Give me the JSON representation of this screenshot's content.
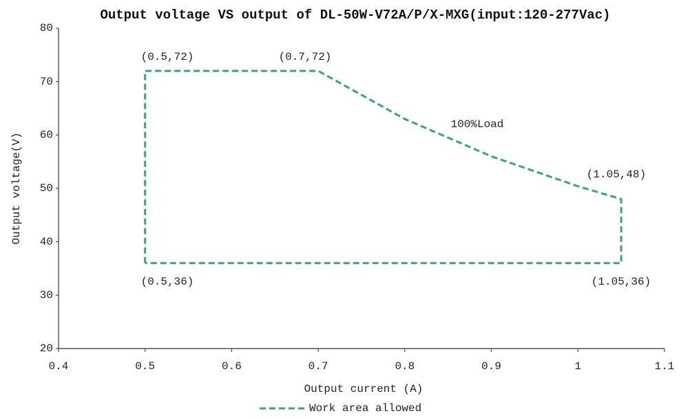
{
  "chart_data": {
    "type": "line",
    "title": "Output voltage VS output of DL-50W-V72A/P/X-MXG(input:120-277Vac)",
    "xlabel": "Output current (A)",
    "ylabel": "Output voltage(V)",
    "x": [
      0.5,
      0.5,
      0.7,
      0.8,
      0.9,
      1.0,
      1.05,
      1.05,
      0.5
    ],
    "series": [
      {
        "name": "Work area allowed",
        "color": "#3aa37c",
        "values": [
          36,
          72,
          72,
          63,
          56,
          50.4,
          48,
          36,
          36
        ]
      }
    ],
    "xlim": [
      0.4,
      1.1
    ],
    "xticks": [
      0.4,
      0.5,
      0.6,
      0.7,
      0.8,
      0.9,
      1,
      1.1
    ],
    "ylim": [
      20,
      80
    ],
    "yticks": [
      20,
      30,
      40,
      50,
      60,
      70,
      80
    ],
    "grid": false,
    "legend": "bottom",
    "annotations": [
      "(0.5,72)",
      "(0.7,72)",
      "100%Load",
      "(1.05,48)",
      "(0.5,36)",
      "(1.05,36)"
    ]
  }
}
